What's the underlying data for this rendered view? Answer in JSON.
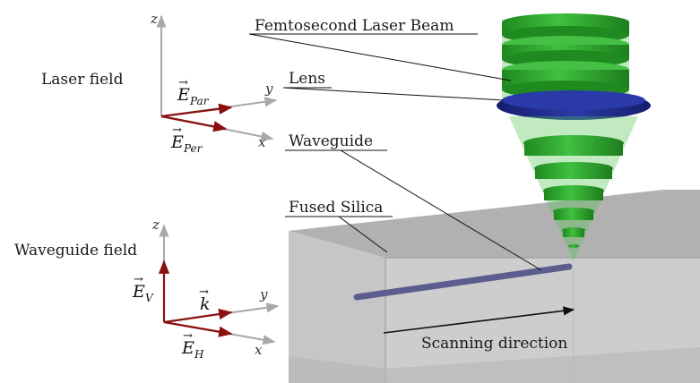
{
  "labels": {
    "laser_field": "Laser field",
    "waveguide_field": "Waveguide field",
    "femtosecond_beam": "Femtosecond Laser Beam",
    "lens": "Lens",
    "waveguide": "Waveguide",
    "fused_silica": "Fused Silica",
    "scanning_direction": "Scanning direction"
  },
  "laser_axes": {
    "z": "z",
    "y": "y",
    "x": "x",
    "e_par": "E",
    "e_par_sub": "Par",
    "e_per": "E",
    "e_per_sub": "Per"
  },
  "waveguide_axes": {
    "z": "z",
    "y": "y",
    "x": "x",
    "e_v": "E",
    "e_v_sub": "V",
    "k": "k",
    "e_h": "E",
    "e_h_sub": "H"
  },
  "colors": {
    "vector": "#8b1010",
    "axis": "#a8a8a8",
    "beam_green": "#2fa82f",
    "lens_blue": "#1c2a8c",
    "silica": "#c4c4c4",
    "waveguide": "#5c5c8e"
  }
}
